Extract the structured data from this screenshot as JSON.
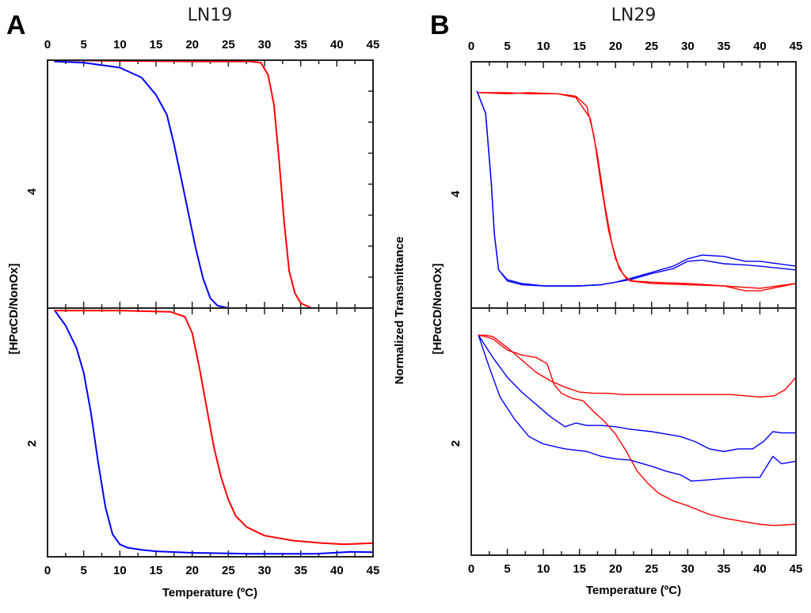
{
  "figure": {
    "panels": [
      {
        "letter": "A",
        "title": "LN19"
      },
      {
        "letter": "B",
        "title": "LN29"
      }
    ],
    "shared_ylabel": "Normalized Transmittance",
    "subpanel_label": "[HPαCD/NonOx]",
    "xlabel": "Temperature (ºC)"
  },
  "chart_data": [
    {
      "type": "line",
      "title": "LN19",
      "panel": "A",
      "xlabel": "Temperature (ºC)",
      "ylabel": "Normalized Transmittance",
      "xlim": [
        0,
        45
      ],
      "xticks": [
        0,
        5,
        10,
        15,
        20,
        25,
        30,
        35,
        40,
        45
      ],
      "xtick_labels": [
        "0",
        "5",
        "10",
        "15",
        "20",
        "25",
        "30",
        "35",
        "40",
        "45"
      ],
      "grid": false,
      "subplots": [
        {
          "row_label": "4",
          "ylim": [
            0,
            1
          ],
          "series": [
            {
              "name": "blue",
              "color": "#0000ff",
              "x": [
                1,
                5,
                10,
                13,
                15,
                16.5,
                17.5,
                18.5,
                19.5,
                20.5,
                21.5,
                22.5,
                23.5,
                25,
                30,
                45
              ],
              "y": [
                0.995,
                0.99,
                0.97,
                0.93,
                0.86,
                0.78,
                0.66,
                0.52,
                0.38,
                0.24,
                0.12,
                0.04,
                0.01,
                0.0,
                0.0,
                0.0
              ]
            },
            {
              "name": "red",
              "color": "#ff0000",
              "x": [
                1,
                10,
                20,
                28,
                29.5,
                30.5,
                31.3,
                32,
                32.7,
                33.4,
                34.2,
                35,
                36.5,
                40,
                45
              ],
              "y": [
                1.0,
                0.997,
                0.995,
                0.995,
                0.99,
                0.94,
                0.82,
                0.6,
                0.35,
                0.15,
                0.06,
                0.02,
                0.0,
                0.0,
                0.0
              ]
            }
          ]
        },
        {
          "row_label": "2",
          "ylim": [
            0,
            1
          ],
          "series": [
            {
              "name": "blue",
              "color": "#0000ff",
              "x": [
                1,
                2.5,
                4,
                5,
                6,
                7,
                8,
                9,
                10,
                11,
                13,
                15,
                20,
                28,
                37,
                42,
                45
              ],
              "y": [
                0.99,
                0.93,
                0.84,
                0.74,
                0.58,
                0.38,
                0.2,
                0.09,
                0.05,
                0.037,
                0.028,
                0.022,
                0.016,
                0.012,
                0.012,
                0.02,
                0.018
              ]
            },
            {
              "name": "red",
              "color": "#ff0000",
              "x": [
                1,
                10,
                17,
                19,
                20,
                21,
                22,
                23,
                24,
                25,
                26,
                27.5,
                30,
                34,
                38,
                41,
                45
              ],
              "y": [
                0.99,
                0.99,
                0.985,
                0.965,
                0.9,
                0.76,
                0.6,
                0.44,
                0.32,
                0.23,
                0.165,
                0.12,
                0.085,
                0.065,
                0.055,
                0.05,
                0.055
              ]
            }
          ]
        }
      ]
    },
    {
      "type": "line",
      "title": "LN29",
      "panel": "B",
      "xlabel": "Temperature (ºC)",
      "ylabel": "Normalized Transmittance",
      "xlim": [
        0,
        45
      ],
      "xticks": [
        0,
        5,
        10,
        15,
        20,
        25,
        30,
        35,
        40,
        45
      ],
      "xtick_labels": [
        "0",
        "5",
        "10",
        "15",
        "20",
        "25",
        "30",
        "35",
        "40",
        "45"
      ],
      "grid": false,
      "subplots": [
        {
          "row_label": "4",
          "ylim": [
            0,
            1
          ],
          "series": [
            {
              "name": "blue-1",
              "color": "#0000ff",
              "x": [
                0.8,
                2,
                2.8,
                3.2,
                3.8,
                5,
                7,
                10,
                15,
                18,
                20,
                22,
                25,
                28,
                30,
                32,
                35,
                38,
                40,
                45
              ],
              "y": [
                0.88,
                0.79,
                0.5,
                0.3,
                0.155,
                0.115,
                0.1,
                0.09,
                0.09,
                0.095,
                0.105,
                0.12,
                0.145,
                0.17,
                0.2,
                0.215,
                0.21,
                0.19,
                0.19,
                0.17
              ]
            },
            {
              "name": "blue-2",
              "color": "#0000ff",
              "x": [
                0.8,
                2,
                2.8,
                3.2,
                3.8,
                5,
                7,
                10,
                15,
                18,
                20,
                22,
                25,
                28,
                30,
                32,
                35,
                38,
                40,
                45
              ],
              "y": [
                0.88,
                0.79,
                0.5,
                0.3,
                0.155,
                0.11,
                0.095,
                0.09,
                0.09,
                0.095,
                0.105,
                0.115,
                0.14,
                0.16,
                0.19,
                0.195,
                0.18,
                0.175,
                0.17,
                0.155
              ]
            },
            {
              "name": "red-1",
              "color": "#ff0000",
              "x": [
                1,
                5,
                8,
                12,
                14.5,
                16,
                17,
                18,
                19,
                20,
                21,
                22,
                25,
                30,
                35,
                40,
                45
              ],
              "y": [
                0.875,
                0.875,
                0.87,
                0.87,
                0.86,
                0.82,
                0.7,
                0.5,
                0.32,
                0.2,
                0.14,
                0.11,
                0.1,
                0.095,
                0.09,
                0.08,
                0.1
              ]
            },
            {
              "name": "red-2",
              "color": "#ff0000",
              "x": [
                1,
                5,
                8,
                12,
                14.5,
                16.5,
                17.5,
                18.5,
                19.5,
                20.5,
                21.5,
                22.5,
                25,
                30,
                35,
                38,
                40,
                45
              ],
              "y": [
                0.875,
                0.87,
                0.875,
                0.87,
                0.855,
                0.77,
                0.62,
                0.42,
                0.26,
                0.16,
                0.12,
                0.11,
                0.105,
                0.1,
                0.09,
                0.07,
                0.07,
                0.1
              ]
            }
          ]
        },
        {
          "row_label": "2",
          "ylim": [
            0,
            1
          ],
          "series": [
            {
              "name": "blue-upper",
              "color": "#0000ff",
              "x": [
                1,
                3,
                5,
                7,
                9,
                11,
                13,
                14.5,
                16,
                18,
                20,
                22,
                25,
                27,
                29,
                31,
                33,
                35,
                37,
                39,
                40.5,
                41.8,
                43,
                45
              ],
              "y": [
                0.89,
                0.8,
                0.72,
                0.66,
                0.61,
                0.56,
                0.52,
                0.535,
                0.525,
                0.525,
                0.52,
                0.51,
                0.5,
                0.49,
                0.48,
                0.46,
                0.43,
                0.42,
                0.43,
                0.43,
                0.46,
                0.5,
                0.495,
                0.495
              ]
            },
            {
              "name": "blue-lower",
              "color": "#0000ff",
              "x": [
                1,
                2.5,
                4,
                6,
                8,
                10,
                13,
                16,
                18,
                20,
                22,
                25,
                27,
                29,
                30.5,
                33,
                35,
                38,
                40,
                41.8,
                43,
                45
              ],
              "y": [
                0.89,
                0.76,
                0.64,
                0.55,
                0.48,
                0.45,
                0.43,
                0.42,
                0.4,
                0.39,
                0.385,
                0.36,
                0.34,
                0.325,
                0.3,
                0.305,
                0.31,
                0.315,
                0.315,
                0.4,
                0.37,
                0.38
              ]
            },
            {
              "name": "red-upper",
              "color": "#ff0000",
              "x": [
                1,
                2,
                3,
                5,
                7,
                9,
                11,
                13,
                15,
                17,
                19,
                21,
                23,
                25,
                27,
                30,
                33,
                36,
                38,
                40,
                42,
                43.5,
                45
              ],
              "y": [
                0.89,
                0.89,
                0.885,
                0.84,
                0.79,
                0.74,
                0.705,
                0.68,
                0.66,
                0.655,
                0.655,
                0.65,
                0.65,
                0.65,
                0.65,
                0.65,
                0.65,
                0.65,
                0.645,
                0.64,
                0.645,
                0.67,
                0.72
              ]
            },
            {
              "name": "red-lower",
              "color": "#ff0000",
              "x": [
                1,
                2,
                3,
                5,
                7,
                9,
                10.5,
                11.5,
                12.5,
                14,
                15.5,
                17,
                18.5,
                20,
                21.5,
                23,
                24.5,
                26,
                28,
                30,
                33,
                35,
                38,
                40,
                42,
                45
              ],
              "y": [
                0.89,
                0.885,
                0.875,
                0.83,
                0.81,
                0.8,
                0.775,
                0.69,
                0.655,
                0.635,
                0.625,
                0.58,
                0.54,
                0.49,
                0.42,
                0.34,
                0.29,
                0.25,
                0.22,
                0.2,
                0.165,
                0.15,
                0.135,
                0.125,
                0.12,
                0.125
              ]
            }
          ]
        }
      ]
    }
  ]
}
